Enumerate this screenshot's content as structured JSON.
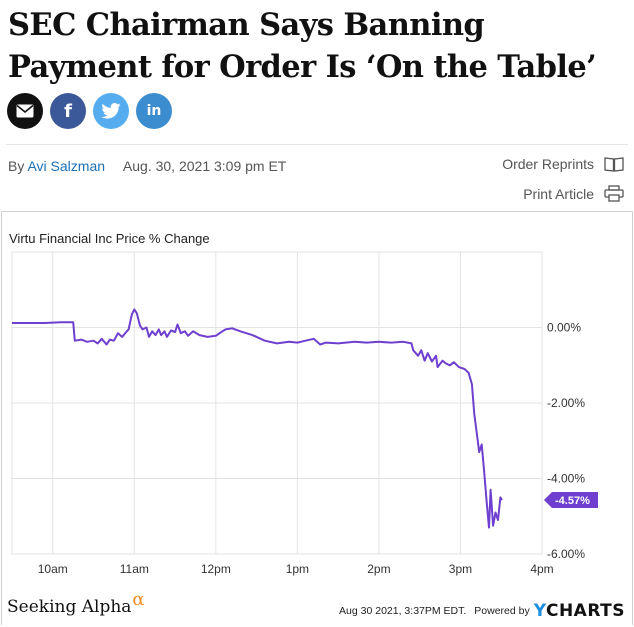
{
  "article": {
    "title": "SEC Chairman Says Banning Payment for Order Is ‘On the Table’",
    "byline_prefix": "By",
    "author": "Avi Salzman",
    "date": "Aug. 30, 2021 3:09 pm ET",
    "order_reprints": "Order Reprints",
    "print_article": "Print Article"
  },
  "share": {
    "email_letter": "",
    "facebook_letter": "f",
    "linkedin_letter": "in"
  },
  "colors": {
    "line": "#6f3fcf",
    "badge": "#6f3fcf",
    "grid": "#e3e3e3",
    "email": "#111111",
    "facebook": "#3b5998",
    "twitter": "#55acee",
    "linkedin": "#3b8dcf"
  },
  "chart_data": {
    "type": "line",
    "title": "Virtu Financial Inc Price % Change",
    "x_ticks": [
      "10am",
      "11am",
      "12pm",
      "1pm",
      "2pm",
      "3pm",
      "4pm"
    ],
    "y_ticks": [
      "0.00%",
      "-2.00%",
      "-4.00%",
      "-6.00%"
    ],
    "ylim": [
      -6.0,
      2.0
    ],
    "xlim": [
      "9:30",
      "16:00"
    ],
    "x_unit": "time (h)",
    "last_value_label": "-4.57%",
    "series": [
      {
        "values": [
          [
            9.5,
            0.12
          ],
          [
            9.9,
            0.12
          ],
          [
            10.1,
            0.14
          ],
          [
            10.25,
            0.14
          ],
          [
            10.27,
            -0.35
          ],
          [
            10.35,
            -0.32
          ],
          [
            10.42,
            -0.38
          ],
          [
            10.5,
            -0.35
          ],
          [
            10.55,
            -0.42
          ],
          [
            10.6,
            -0.3
          ],
          [
            10.66,
            -0.45
          ],
          [
            10.7,
            -0.32
          ],
          [
            10.75,
            -0.35
          ],
          [
            10.8,
            -0.15
          ],
          [
            10.85,
            -0.25
          ],
          [
            10.9,
            -0.12
          ],
          [
            10.93,
            -0.05
          ],
          [
            10.97,
            0.35
          ],
          [
            11.0,
            0.48
          ],
          [
            11.03,
            0.38
          ],
          [
            11.07,
            0.05
          ],
          [
            11.1,
            -0.05
          ],
          [
            11.15,
            0.0
          ],
          [
            11.18,
            -0.25
          ],
          [
            11.22,
            -0.1
          ],
          [
            11.26,
            -0.2
          ],
          [
            11.3,
            -0.05
          ],
          [
            11.33,
            -0.2
          ],
          [
            11.37,
            -0.1
          ],
          [
            11.4,
            -0.25
          ],
          [
            11.45,
            -0.08
          ],
          [
            11.5,
            -0.12
          ],
          [
            11.53,
            0.08
          ],
          [
            11.57,
            -0.15
          ],
          [
            11.62,
            -0.1
          ],
          [
            11.66,
            -0.22
          ],
          [
            11.72,
            -0.1
          ],
          [
            11.8,
            -0.2
          ],
          [
            11.9,
            -0.25
          ],
          [
            12.0,
            -0.22
          ],
          [
            12.08,
            -0.1
          ],
          [
            12.12,
            -0.05
          ],
          [
            12.2,
            -0.02
          ],
          [
            12.3,
            -0.1
          ],
          [
            12.45,
            -0.2
          ],
          [
            12.6,
            -0.35
          ],
          [
            12.75,
            -0.42
          ],
          [
            12.9,
            -0.38
          ],
          [
            13.0,
            -0.4
          ],
          [
            13.1,
            -0.35
          ],
          [
            13.2,
            -0.3
          ],
          [
            13.28,
            -0.45
          ],
          [
            13.35,
            -0.4
          ],
          [
            13.5,
            -0.42
          ],
          [
            13.7,
            -0.38
          ],
          [
            13.85,
            -0.4
          ],
          [
            14.0,
            -0.38
          ],
          [
            14.15,
            -0.4
          ],
          [
            14.3,
            -0.38
          ],
          [
            14.4,
            -0.42
          ],
          [
            14.42,
            -0.6
          ],
          [
            14.48,
            -0.75
          ],
          [
            14.52,
            -0.6
          ],
          [
            14.56,
            -0.88
          ],
          [
            14.6,
            -0.68
          ],
          [
            14.65,
            -0.9
          ],
          [
            14.7,
            -0.75
          ],
          [
            14.72,
            -1.05
          ],
          [
            14.78,
            -0.88
          ],
          [
            14.82,
            -0.95
          ],
          [
            14.87,
            -1.0
          ],
          [
            14.92,
            -0.92
          ],
          [
            14.98,
            -1.05
          ],
          [
            15.05,
            -1.1
          ],
          [
            15.1,
            -1.2
          ],
          [
            15.14,
            -1.5
          ],
          [
            15.17,
            -2.3
          ],
          [
            15.2,
            -2.8
          ],
          [
            15.23,
            -3.3
          ],
          [
            15.26,
            -3.1
          ],
          [
            15.29,
            -3.8
          ],
          [
            15.32,
            -4.6
          ],
          [
            15.35,
            -5.3
          ],
          [
            15.37,
            -4.3
          ],
          [
            15.4,
            -5.25
          ],
          [
            15.43,
            -4.9
          ],
          [
            15.46,
            -5.1
          ],
          [
            15.49,
            -4.5
          ],
          [
            15.51,
            -4.57
          ]
        ]
      }
    ],
    "grid": true
  },
  "footer": {
    "brand": "Seeking Alpha",
    "brand_mark": "α",
    "timestamp": "Aug 30 2021, 3:37PM EDT.",
    "powered_by": "Powered by",
    "ycharts_y": "Y",
    "ycharts_rest": "CHARTS"
  }
}
